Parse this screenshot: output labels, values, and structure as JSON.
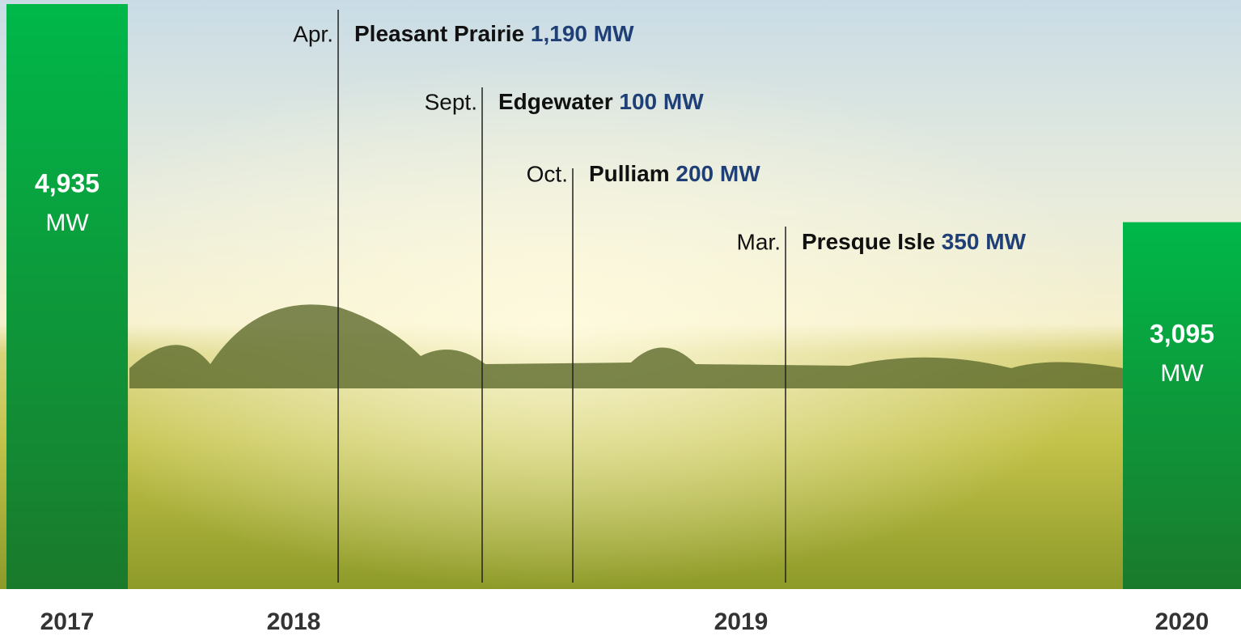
{
  "chart_data": {
    "type": "bar",
    "categories": [
      "2017",
      "2018",
      "2019",
      "2020"
    ],
    "values": [
      4935,
      null,
      null,
      3095
    ],
    "value_labels": [
      "4,935",
      null,
      null,
      "3,095"
    ],
    "unit": "MW",
    "color": "#0aa83c",
    "annotations": [
      {
        "month": "Apr.",
        "name": "Pleasant Prairie",
        "capacity": "1,190 MW"
      },
      {
        "month": "Sept.",
        "name": "Edgewater",
        "capacity": "100 MW"
      },
      {
        "month": "Oct.",
        "name": "Pulliam",
        "capacity": "200 MW"
      },
      {
        "month": "Mar.",
        "name": "Presque Isle",
        "capacity": "350 MW"
      }
    ]
  }
}
